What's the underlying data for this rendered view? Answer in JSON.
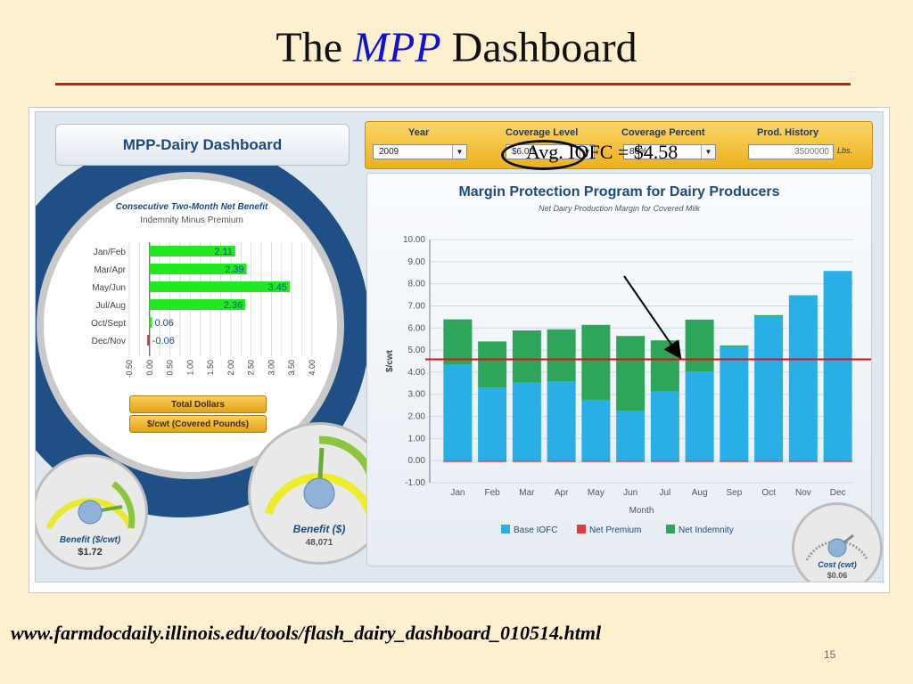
{
  "slide": {
    "title_prefix": "The",
    "title_highlight": "MPP",
    "title_suffix": "Dashboard",
    "url": "www.farmdocdaily.illinois.edu/tools/flash_dairy_dashboard_010514.html",
    "slide_number": "15",
    "annotation": "Avg. IOFC = $4.58",
    "annotation_value": 4.58
  },
  "dashboard": {
    "title": "MPP-Dairy Dashboard",
    "controls": {
      "year_label": "Year",
      "year_value": "2009",
      "coverage_level_label": "Coverage Level",
      "coverage_level_value": "$6.00",
      "coverage_percent_label": "Coverage Percent",
      "coverage_percent_value": "80%",
      "prod_history_label": "Prod. History",
      "prod_history_value": "3500000",
      "prod_history_unit": "Lbs."
    },
    "net_benefit": {
      "title": "Consecutive Two-Month Net Benefit",
      "subtitle": "Indemnity Minus Premium",
      "total_dollars_label": "Total Dollars",
      "per_cwt_label": "$/cwt (Covered Pounds)"
    },
    "gauges": {
      "benefit_cwt_label": "Benefit ($/cwt)",
      "benefit_cwt_value": "$1.72",
      "benefit_label": "Benefit ($)",
      "benefit_value": "48,071",
      "cost_label": "Cost (cwt)",
      "cost_value": "$0.06"
    },
    "chart": {
      "title": "Margin Protection Program for Dairy Producers",
      "subtitle": "Net Dairy Production Margin for Covered Milk"
    }
  },
  "colors": {
    "base_iofc": "#2aaee6",
    "net_premium": "#e03b3b",
    "net_indemnity": "#2ea55a",
    "avg_line": "#dd1111",
    "hbar_fill": "#22e822"
  },
  "chart_data": [
    {
      "type": "bar",
      "orientation": "horizontal",
      "title": "Consecutive Two-Month Net Benefit",
      "subtitle": "Indemnity Minus Premium",
      "categories": [
        "Jan/Feb",
        "Mar/Apr",
        "May/Jun",
        "Jul/Aug",
        "Oct/Sept",
        "Dec/Nov"
      ],
      "values": [
        2.11,
        2.39,
        3.45,
        2.36,
        0.06,
        -0.06
      ],
      "value_labels": [
        "2.11",
        "2.39",
        "3.45",
        "2.36",
        "0.06",
        "-0.06"
      ],
      "xlim": [
        -0.5,
        4.0
      ],
      "ticks": [
        "-0.50",
        "0.00",
        "0.50",
        "1.00",
        "1.50",
        "2.00",
        "2.50",
        "3.00",
        "3.50",
        "4.00"
      ],
      "grid": true
    },
    {
      "type": "bar",
      "stacked": true,
      "title": "Margin Protection Program for Dairy Producers",
      "subtitle": "Net Dairy Production Margin for Covered Milk",
      "xlabel": "Month",
      "ylabel": "$/cwt",
      "categories": [
        "Jan",
        "Feb",
        "Mar",
        "Apr",
        "May",
        "Jun",
        "Jul",
        "Aug",
        "Sep",
        "Oct",
        "Nov",
        "Dec"
      ],
      "ylim": [
        -1.0,
        10.0
      ],
      "yticks": [
        "-1.00",
        "0.00",
        "1.00",
        "2.00",
        "3.00",
        "4.00",
        "5.00",
        "6.00",
        "7.00",
        "8.00",
        "9.00",
        "10.00"
      ],
      "legend": "bottom",
      "series": [
        {
          "name": "Base IOFC",
          "values": [
            4.33,
            3.3,
            3.52,
            3.58,
            2.75,
            2.25,
            3.12,
            4.02,
            5.15,
            6.52,
            7.48,
            8.58
          ]
        },
        {
          "name": "Net Premium",
          "values": [
            -0.06,
            -0.06,
            -0.06,
            -0.06,
            -0.06,
            -0.06,
            -0.06,
            -0.06,
            -0.06,
            -0.06,
            -0.06,
            -0.06
          ]
        },
        {
          "name": "Net Indemnity",
          "values": [
            2.06,
            2.09,
            2.37,
            2.36,
            3.39,
            3.39,
            2.32,
            2.36,
            0.06,
            0.06,
            0,
            0
          ]
        }
      ]
    }
  ]
}
